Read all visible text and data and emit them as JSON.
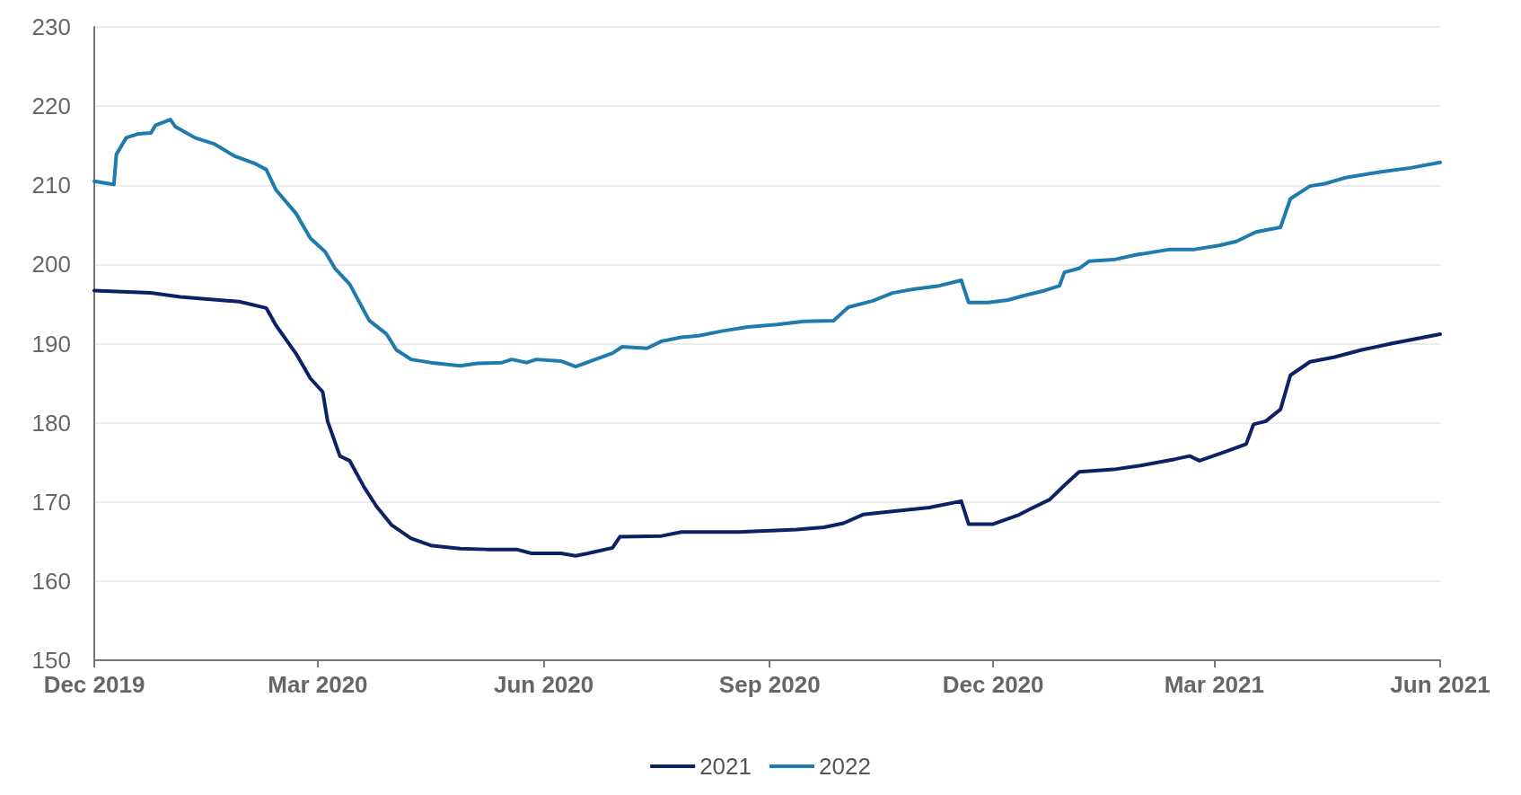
{
  "chart_data": {
    "type": "line",
    "xlim": [
      "2019-12-01",
      "2021-06-01"
    ],
    "xticks": [
      {
        "value": "2019-12-01",
        "label": "Dec 2019"
      },
      {
        "value": "2020-03-01",
        "label": "Mar 2020"
      },
      {
        "value": "2020-06-01",
        "label": "Jun 2020"
      },
      {
        "value": "2020-09-01",
        "label": "Sep 2020"
      },
      {
        "value": "2020-12-01",
        "label": "Dec 2020"
      },
      {
        "value": "2021-03-01",
        "label": "Mar 2021"
      },
      {
        "value": "2021-06-01",
        "label": "Jun 2021"
      }
    ],
    "ylim": [
      150,
      230
    ],
    "yticks": [
      150,
      160,
      170,
      180,
      190,
      200,
      210,
      220,
      230
    ],
    "grid": "y",
    "legend": "bottom",
    "marker": "none",
    "line_style": "solid",
    "series": [
      {
        "name": "2021",
        "color": "#0b2265",
        "x": [
          "2019-12-01",
          "2019-12-24",
          "2020-01-05",
          "2020-01-29",
          "2020-02-09",
          "2020-02-13",
          "2020-02-21",
          "2020-02-27",
          "2020-03-03",
          "2020-03-05",
          "2020-03-10",
          "2020-03-14",
          "2020-03-20",
          "2020-03-25",
          "2020-03-31",
          "2020-04-08",
          "2020-04-16",
          "2020-04-28",
          "2020-05-09",
          "2020-05-21",
          "2020-05-27",
          "2020-06-08",
          "2020-06-14",
          "2020-06-19",
          "2020-06-29",
          "2020-07-02",
          "2020-07-19",
          "2020-07-27",
          "2020-08-19",
          "2020-09-12",
          "2020-09-23",
          "2020-10-01",
          "2020-10-09",
          "2020-10-21",
          "2020-11-05",
          "2020-11-18",
          "2020-11-21",
          "2020-12-01",
          "2020-12-11",
          "2020-12-16",
          "2020-12-24",
          "2020-12-30",
          "2021-01-05",
          "2021-01-19",
          "2021-01-30",
          "2021-02-13",
          "2021-02-19",
          "2021-02-23",
          "2021-03-06",
          "2021-03-14",
          "2021-03-17",
          "2021-03-22",
          "2021-03-28",
          "2021-04-01",
          "2021-04-09",
          "2021-04-19",
          "2021-04-30",
          "2021-05-12",
          "2021-06-01"
        ],
        "values": [
          196.7,
          196.4,
          195.9,
          195.3,
          194.5,
          192.3,
          188.8,
          185.6,
          183.9,
          180.2,
          175.8,
          175.2,
          171.8,
          169.4,
          167.1,
          165.4,
          164.5,
          164.1,
          164,
          164,
          163.5,
          163.5,
          163.2,
          163.5,
          164.2,
          165.6,
          165.7,
          166.2,
          166.2,
          166.5,
          166.8,
          167.3,
          168.4,
          168.8,
          169.3,
          170.1,
          167.2,
          167.2,
          168.3,
          169.1,
          170.3,
          172.1,
          173.8,
          174.1,
          174.6,
          175.4,
          175.8,
          175.2,
          176.4,
          177.3,
          179.8,
          180.2,
          181.7,
          186,
          187.7,
          188.3,
          189.2,
          190,
          191.2
        ]
      },
      {
        "name": "2022",
        "color": "#1f7bab",
        "x": [
          "2019-12-01",
          "2019-12-07",
          "2019-12-09",
          "2019-12-10",
          "2019-12-14",
          "2019-12-19",
          "2019-12-24",
          "2019-12-26",
          "2020-01-01",
          "2020-01-03",
          "2020-01-11",
          "2020-01-19",
          "2020-01-27",
          "2020-02-04",
          "2020-02-09",
          "2020-02-13",
          "2020-02-21",
          "2020-02-27",
          "2020-03-04",
          "2020-03-08",
          "2020-03-14",
          "2020-03-18",
          "2020-03-22",
          "2020-03-29",
          "2020-04-02",
          "2020-04-08",
          "2020-04-16",
          "2020-04-28",
          "2020-05-05",
          "2020-05-15",
          "2020-05-19",
          "2020-05-25",
          "2020-05-29",
          "2020-06-08",
          "2020-06-14",
          "2020-06-21",
          "2020-06-29",
          "2020-07-03",
          "2020-07-13",
          "2020-07-19",
          "2020-07-27",
          "2020-08-03",
          "2020-08-13",
          "2020-08-23",
          "2020-09-04",
          "2020-09-15",
          "2020-09-27",
          "2020-10-03",
          "2020-10-13",
          "2020-10-21",
          "2020-10-30",
          "2020-11-09",
          "2020-11-18",
          "2020-11-21",
          "2020-11-29",
          "2020-12-07",
          "2020-12-14",
          "2020-12-22",
          "2020-12-28",
          "2020-12-30",
          "2021-01-05",
          "2021-01-09",
          "2021-01-19",
          "2021-01-28",
          "2021-02-11",
          "2021-02-21",
          "2021-03-03",
          "2021-03-10",
          "2021-03-18",
          "2021-03-28",
          "2021-04-01",
          "2021-04-09",
          "2021-04-15",
          "2021-04-24",
          "2021-05-08",
          "2021-05-20",
          "2021-06-01"
        ],
        "values": [
          210.5,
          210.2,
          210.1,
          213.9,
          216,
          216.5,
          216.6,
          217.6,
          218.3,
          217.4,
          216,
          215.2,
          213.7,
          212.8,
          212,
          209.4,
          206.5,
          203.3,
          201.6,
          199.5,
          197.5,
          195.2,
          192.9,
          191.2,
          189.2,
          188,
          187.6,
          187.2,
          187.5,
          187.6,
          188,
          187.6,
          188,
          187.8,
          187.1,
          187.9,
          188.8,
          189.6,
          189.4,
          190.3,
          190.8,
          191,
          191.6,
          192.1,
          192.4,
          192.8,
          192.9,
          194.6,
          195.4,
          196.4,
          196.9,
          197.3,
          198,
          195.2,
          195.2,
          195.5,
          196.1,
          196.7,
          197.3,
          199,
          199.5,
          200.4,
          200.6,
          201.2,
          201.9,
          201.9,
          202.4,
          202.9,
          204.1,
          204.7,
          208.3,
          209.9,
          210.2,
          211,
          211.7,
          212.2,
          212.9
        ]
      }
    ]
  }
}
